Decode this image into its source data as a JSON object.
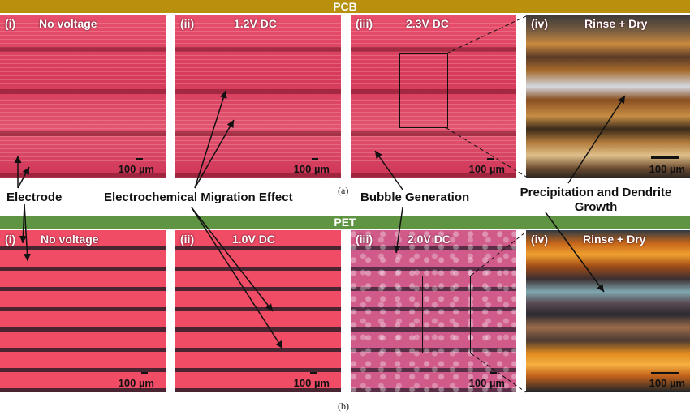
{
  "banners": {
    "top": "PCB",
    "bottom": "PET"
  },
  "pcb_panels": [
    {
      "tag": "(i)",
      "condition": "No voltage",
      "scale": "100 µm"
    },
    {
      "tag": "(ii)",
      "condition": "1.2V DC",
      "scale": "100 µm"
    },
    {
      "tag": "(iii)",
      "condition": "2.3V DC",
      "scale": "100 µm"
    },
    {
      "tag": "(iv)",
      "condition": "Rinse + Dry",
      "scale": "100 µm"
    }
  ],
  "pet_panels": [
    {
      "tag": "(i)",
      "condition": "No voltage",
      "scale": "100 µm"
    },
    {
      "tag": "(ii)",
      "condition": "1.0V DC",
      "scale": "100 µm"
    },
    {
      "tag": "(iii)",
      "condition": "2.0V DC",
      "scale": "100 µm"
    },
    {
      "tag": "(iv)",
      "condition": "Rinse + Dry",
      "scale": "100 µm"
    }
  ],
  "captions": {
    "a": "(a)",
    "b": "(b)"
  },
  "callouts": {
    "electrode": "Electrode",
    "migration": "Electrochemical Migration Effect",
    "bubble": "Bubble Generation",
    "precipitation_line1": "Precipitation and Dendrite",
    "precipitation_line2": "Growth"
  }
}
